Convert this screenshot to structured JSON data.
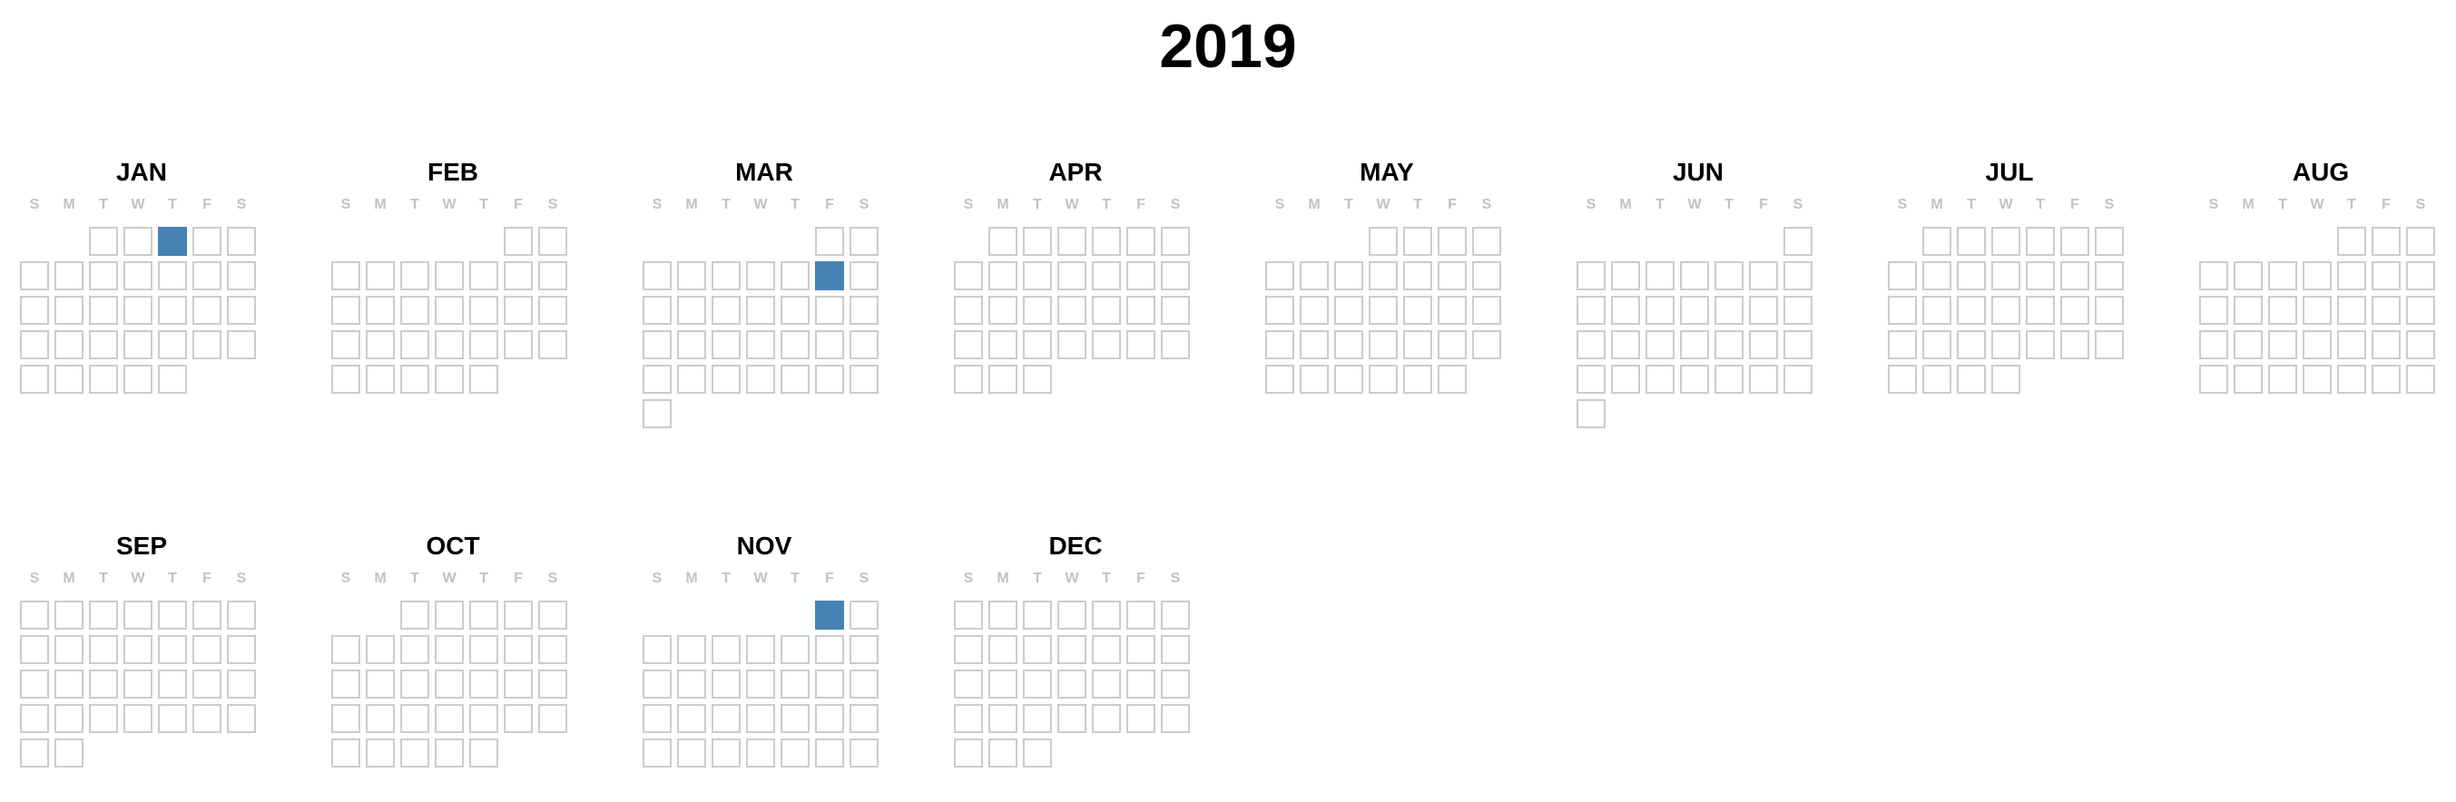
{
  "year": "2019",
  "weekdays": [
    "S",
    "M",
    "T",
    "W",
    "T",
    "F",
    "S"
  ],
  "months": [
    {
      "name": "JAN",
      "first_weekday": 2,
      "days": 31
    },
    {
      "name": "FEB",
      "first_weekday": 5,
      "days": 28
    },
    {
      "name": "MAR",
      "first_weekday": 5,
      "days": 31
    },
    {
      "name": "APR",
      "first_weekday": 1,
      "days": 30
    },
    {
      "name": "MAY",
      "first_weekday": 3,
      "days": 31
    },
    {
      "name": "JUN",
      "first_weekday": 6,
      "days": 30
    },
    {
      "name": "JUL",
      "first_weekday": 1,
      "days": 31
    },
    {
      "name": "AUG",
      "first_weekday": 4,
      "days": 31
    },
    {
      "name": "SEP",
      "first_weekday": 0,
      "days": 30
    },
    {
      "name": "OCT",
      "first_weekday": 2,
      "days": 31
    },
    {
      "name": "NOV",
      "first_weekday": 5,
      "days": 30
    },
    {
      "name": "DEC",
      "first_weekday": 0,
      "days": 31
    }
  ],
  "highlighted_dates": [
    {
      "month": "JAN",
      "day": 3
    },
    {
      "month": "MAR",
      "day": 8
    },
    {
      "month": "NOV",
      "day": 1
    }
  ],
  "colors": {
    "highlight": "#4682b4",
    "cell_border": "#cccccc",
    "weekday_label": "#c2c2c2"
  }
}
